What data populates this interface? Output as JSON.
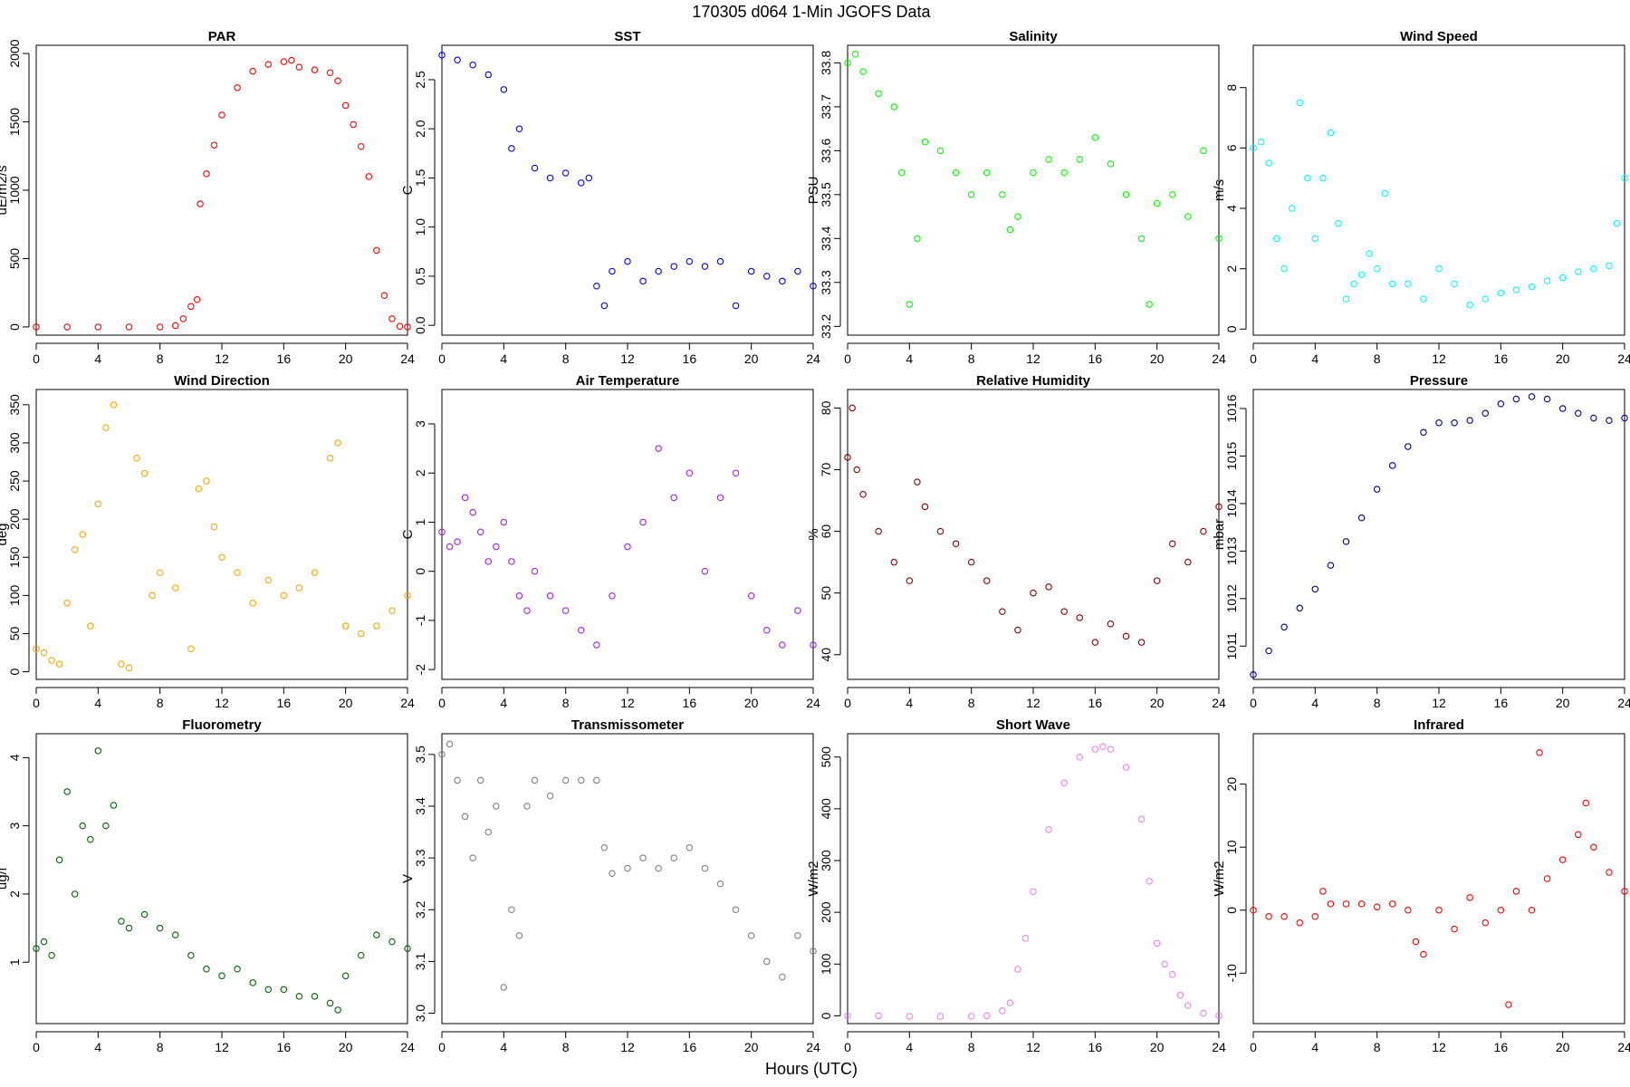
{
  "title": "170305   d064   1-Min  JGOFS Data",
  "xlabel": "Hours (UTC)",
  "chart_data": [
    {
      "type": "scatter",
      "title": "PAR",
      "ylabel": "uE/m2/s",
      "color": "#ff0000",
      "xlim": [
        0,
        24
      ],
      "ylim": [
        -60,
        2060
      ],
      "xticks": [
        0,
        4,
        8,
        12,
        16,
        20,
        24
      ],
      "yticks": [
        0,
        500,
        1000,
        1500,
        2000
      ],
      "x": [
        0,
        2,
        4,
        6,
        8,
        9,
        9.5,
        10,
        10.4,
        10.6,
        11,
        11.5,
        12,
        13,
        14,
        15,
        16,
        16.5,
        17,
        18,
        19,
        19.5,
        20,
        20.5,
        21,
        21.5,
        22,
        22.5,
        23,
        23.5,
        24
      ],
      "y": [
        0,
        0,
        0,
        0,
        0,
        10,
        60,
        150,
        200,
        900,
        1120,
        1330,
        1550,
        1750,
        1870,
        1920,
        1940,
        1950,
        1900,
        1880,
        1860,
        1800,
        1620,
        1480,
        1320,
        1100,
        560,
        230,
        60,
        5,
        0
      ]
    },
    {
      "type": "scatter",
      "title": "SST",
      "ylabel": "C",
      "color": "#0000ff",
      "xlim": [
        0,
        24
      ],
      "ylim": [
        -0.1,
        2.85
      ],
      "xticks": [
        0,
        4,
        8,
        12,
        16,
        20,
        24
      ],
      "yticks": [
        0.0,
        0.5,
        1.0,
        1.5,
        2.0,
        2.5
      ],
      "x": [
        0,
        1,
        2,
        3,
        4,
        4.5,
        5,
        6,
        7,
        8,
        9,
        9.5,
        10,
        10.5,
        11,
        12,
        13,
        14,
        15,
        16,
        17,
        18,
        19,
        20,
        21,
        22,
        23,
        24
      ],
      "y": [
        2.75,
        2.7,
        2.65,
        2.55,
        2.4,
        1.8,
        2.0,
        1.6,
        1.5,
        1.55,
        1.45,
        1.5,
        0.4,
        0.2,
        0.55,
        0.65,
        0.45,
        0.55,
        0.6,
        0.65,
        0.6,
        0.65,
        0.2,
        0.55,
        0.5,
        0.45,
        0.55,
        0.4
      ]
    },
    {
      "type": "scatter",
      "title": "Salinity",
      "ylabel": "PSU",
      "color": "#00ff00",
      "xlim": [
        0,
        24
      ],
      "ylim": [
        33.18,
        33.84
      ],
      "xticks": [
        0,
        4,
        8,
        12,
        16,
        20,
        24
      ],
      "yticks": [
        33.2,
        33.3,
        33.4,
        33.5,
        33.6,
        33.7,
        33.8
      ],
      "x": [
        0,
        0.5,
        1,
        2,
        3,
        3.5,
        4,
        4.5,
        5,
        6,
        7,
        8,
        9,
        10,
        10.5,
        11,
        12,
        13,
        14,
        15,
        16,
        17,
        18,
        19,
        19.5,
        20,
        21,
        22,
        23,
        24
      ],
      "y": [
        33.8,
        33.82,
        33.78,
        33.73,
        33.7,
        33.55,
        33.25,
        33.4,
        33.62,
        33.6,
        33.55,
        33.5,
        33.55,
        33.5,
        33.42,
        33.45,
        33.55,
        33.58,
        33.55,
        33.58,
        33.63,
        33.57,
        33.5,
        33.4,
        33.25,
        33.48,
        33.5,
        33.45,
        33.6,
        33.4
      ]
    },
    {
      "type": "scatter",
      "title": "Wind Speed",
      "ylabel": "m/s",
      "color": "#00ffff",
      "xlim": [
        0,
        24
      ],
      "ylim": [
        -0.2,
        9.4
      ],
      "xticks": [
        0,
        4,
        8,
        12,
        16,
        20,
        24
      ],
      "yticks": [
        0,
        2,
        4,
        6,
        8
      ],
      "x": [
        0,
        0.5,
        1,
        1.5,
        2,
        2.5,
        3,
        3.5,
        4,
        4.5,
        5,
        5.5,
        6,
        6.5,
        7,
        7.5,
        8,
        8.5,
        9,
        10,
        11,
        12,
        13,
        14,
        15,
        16,
        17,
        18,
        19,
        20,
        21,
        22,
        23,
        23.5,
        24
      ],
      "y": [
        6,
        6.2,
        5.5,
        3,
        2,
        4,
        7.5,
        5,
        3,
        5,
        6.5,
        3.5,
        1,
        1.5,
        1.8,
        2.5,
        2,
        4.5,
        1.5,
        1.5,
        1,
        2,
        1.5,
        0.8,
        1,
        1.2,
        1.3,
        1.4,
        1.6,
        1.7,
        1.9,
        2,
        2.1,
        3.5,
        5
      ]
    },
    {
      "type": "scatter",
      "title": "Wind Direction",
      "ylabel": "deg",
      "color": "#ffa500",
      "xlim": [
        0,
        24
      ],
      "ylim": [
        -10,
        370
      ],
      "xticks": [
        0,
        4,
        8,
        12,
        16,
        20,
        24
      ],
      "yticks": [
        0,
        50,
        100,
        150,
        200,
        250,
        300,
        350
      ],
      "x": [
        0,
        0.5,
        1,
        1.5,
        2,
        2.5,
        3,
        3.5,
        4,
        4.5,
        5,
        5.5,
        6,
        6.5,
        7,
        7.5,
        8,
        9,
        10,
        10.5,
        11,
        11.5,
        12,
        13,
        14,
        15,
        16,
        17,
        18,
        19,
        19.5,
        20,
        21,
        22,
        23,
        24
      ],
      "y": [
        30,
        25,
        15,
        10,
        90,
        160,
        180,
        60,
        220,
        320,
        350,
        10,
        5,
        280,
        260,
        100,
        130,
        110,
        30,
        240,
        250,
        190,
        150,
        130,
        90,
        120,
        100,
        110,
        130,
        280,
        300,
        60,
        50,
        60,
        80,
        100
      ]
    },
    {
      "type": "scatter",
      "title": "Air Temperature",
      "ylabel": "C",
      "color": "#a020f0",
      "xlim": [
        0,
        24
      ],
      "ylim": [
        -2.2,
        3.7
      ],
      "xticks": [
        0,
        4,
        8,
        12,
        16,
        20,
        24
      ],
      "yticks": [
        -2,
        -1,
        0,
        1,
        2,
        3
      ],
      "x": [
        0,
        0.5,
        1,
        1.5,
        2,
        2.5,
        3,
        3.5,
        4,
        4.5,
        5,
        5.5,
        6,
        7,
        8,
        9,
        10,
        11,
        12,
        13,
        14,
        15,
        16,
        17,
        18,
        19,
        20,
        21,
        22,
        23,
        24
      ],
      "y": [
        0.8,
        0.5,
        0.6,
        1.5,
        1.2,
        0.8,
        0.2,
        0.5,
        1.0,
        0.2,
        -0.5,
        -0.8,
        0.0,
        -0.5,
        -0.8,
        -1.2,
        -1.5,
        -0.5,
        0.5,
        1.0,
        2.5,
        1.5,
        2.0,
        0.0,
        1.5,
        2.0,
        -0.5,
        -1.2,
        -1.5,
        -0.8,
        -1.5
      ]
    },
    {
      "type": "scatter",
      "title": "Relative Humidity",
      "ylabel": "%",
      "color": "#8b0000",
      "xlim": [
        0,
        24
      ],
      "ylim": [
        36,
        83
      ],
      "xticks": [
        0,
        4,
        8,
        12,
        16,
        20,
        24
      ],
      "yticks": [
        40,
        50,
        60,
        70,
        80
      ],
      "x": [
        0,
        0.3,
        0.6,
        1,
        2,
        3,
        4,
        4.5,
        5,
        6,
        7,
        8,
        9,
        10,
        11,
        12,
        13,
        14,
        15,
        16,
        17,
        18,
        19,
        20,
        21,
        22,
        23,
        24
      ],
      "y": [
        72,
        80,
        70,
        66,
        60,
        55,
        52,
        68,
        64,
        60,
        58,
        55,
        52,
        47,
        44,
        50,
        51,
        47,
        46,
        42,
        45,
        43,
        42,
        52,
        58,
        55,
        60,
        64
      ]
    },
    {
      "type": "scatter",
      "title": "Pressure",
      "ylabel": "mbar",
      "color": "#00008b",
      "xlim": [
        0,
        24
      ],
      "ylim": [
        1010.3,
        1016.4
      ],
      "xticks": [
        0,
        4,
        8,
        12,
        16,
        20,
        24
      ],
      "yticks": [
        1011,
        1012,
        1013,
        1014,
        1015,
        1016
      ],
      "x": [
        0,
        1,
        2,
        3,
        4,
        5,
        6,
        7,
        8,
        9,
        10,
        11,
        12,
        13,
        14,
        15,
        16,
        17,
        18,
        19,
        20,
        21,
        22,
        23,
        24
      ],
      "y": [
        1010.4,
        1010.9,
        1011.4,
        1011.8,
        1012.2,
        1012.7,
        1013.2,
        1013.7,
        1014.3,
        1014.8,
        1015.2,
        1015.5,
        1015.7,
        1015.7,
        1015.75,
        1015.9,
        1016.1,
        1016.2,
        1016.25,
        1016.2,
        1016.0,
        1015.9,
        1015.8,
        1015.75,
        1015.8
      ]
    },
    {
      "type": "scatter",
      "title": "Fluorometry",
      "ylabel": "ug/l",
      "color": "#006400",
      "xlim": [
        0,
        24
      ],
      "ylim": [
        0.1,
        4.35
      ],
      "xticks": [
        0,
        4,
        8,
        12,
        16,
        20,
        24
      ],
      "yticks": [
        1,
        2,
        3,
        4
      ],
      "x": [
        0,
        0.5,
        1,
        1.5,
        2,
        2.5,
        3,
        3.5,
        4,
        4.5,
        5,
        5.5,
        6,
        7,
        8,
        9,
        10,
        11,
        12,
        13,
        14,
        15,
        16,
        17,
        18,
        19,
        19.5,
        20,
        21,
        22,
        23,
        24
      ],
      "y": [
        1.2,
        1.3,
        1.1,
        2.5,
        3.5,
        2.0,
        3.0,
        2.8,
        4.1,
        3.0,
        3.3,
        1.6,
        1.5,
        1.7,
        1.5,
        1.4,
        1.1,
        0.9,
        0.8,
        0.9,
        0.7,
        0.6,
        0.6,
        0.5,
        0.5,
        0.4,
        0.3,
        0.8,
        1.1,
        1.4,
        1.3,
        1.2
      ]
    },
    {
      "type": "scatter",
      "title": "Transmissometer",
      "ylabel": "V",
      "color": "#808080",
      "xlim": [
        0,
        24
      ],
      "ylim": [
        2.98,
        3.54
      ],
      "xticks": [
        0,
        4,
        8,
        12,
        16,
        20,
        24
      ],
      "yticks": [
        3.0,
        3.1,
        3.2,
        3.3,
        3.4,
        3.5
      ],
      "x": [
        0,
        0.5,
        1,
        1.5,
        2,
        2.5,
        3,
        3.5,
        4,
        4.5,
        5,
        5.5,
        6,
        7,
        8,
        9,
        10,
        10.5,
        11,
        12,
        13,
        14,
        15,
        16,
        17,
        18,
        19,
        20,
        21,
        22,
        23,
        24
      ],
      "y": [
        3.5,
        3.52,
        3.45,
        3.38,
        3.3,
        3.45,
        3.35,
        3.4,
        3.05,
        3.2,
        3.15,
        3.4,
        3.45,
        3.42,
        3.45,
        3.45,
        3.45,
        3.32,
        3.27,
        3.28,
        3.3,
        3.28,
        3.3,
        3.32,
        3.28,
        3.25,
        3.2,
        3.15,
        3.1,
        3.07,
        3.15,
        3.12
      ]
    },
    {
      "type": "scatter",
      "title": "Short Wave",
      "ylabel": "W/m2",
      "color": "#ee82ee",
      "xlim": [
        0,
        24
      ],
      "ylim": [
        -15,
        545
      ],
      "xticks": [
        0,
        4,
        8,
        12,
        16,
        20,
        24
      ],
      "yticks": [
        0,
        100,
        200,
        300,
        400,
        500
      ],
      "x": [
        0,
        2,
        4,
        6,
        8,
        9,
        10,
        10.5,
        11,
        11.5,
        12,
        13,
        14,
        15,
        16,
        16.5,
        17,
        18,
        19,
        19.5,
        20,
        20.5,
        21,
        21.5,
        22,
        23,
        24
      ],
      "y": [
        0,
        0,
        -1,
        -1,
        -1,
        0,
        10,
        25,
        90,
        150,
        240,
        360,
        450,
        500,
        515,
        520,
        515,
        480,
        380,
        260,
        140,
        100,
        80,
        40,
        20,
        5,
        0
      ]
    },
    {
      "type": "scatter",
      "title": "Infrared",
      "ylabel": "W/m2",
      "color": "#ff0000",
      "xlim": [
        0,
        24
      ],
      "ylim": [
        -18,
        28
      ],
      "xticks": [
        0,
        4,
        8,
        12,
        16,
        20,
        24
      ],
      "yticks": [
        -10,
        0,
        10,
        20
      ],
      "x": [
        0,
        1,
        2,
        3,
        4,
        4.5,
        5,
        6,
        7,
        8,
        9,
        10,
        10.5,
        11,
        12,
        13,
        14,
        15,
        16,
        16.5,
        17,
        18,
        18.5,
        19,
        20,
        21,
        21.5,
        22,
        23,
        24
      ],
      "y": [
        0,
        -1,
        -1,
        -2,
        -1,
        3,
        1,
        1,
        1,
        0.5,
        1,
        0,
        -5,
        -7,
        0,
        -3,
        2,
        -2,
        0,
        -15,
        3,
        0,
        25,
        5,
        8,
        12,
        17,
        10,
        6,
        3
      ]
    }
  ]
}
